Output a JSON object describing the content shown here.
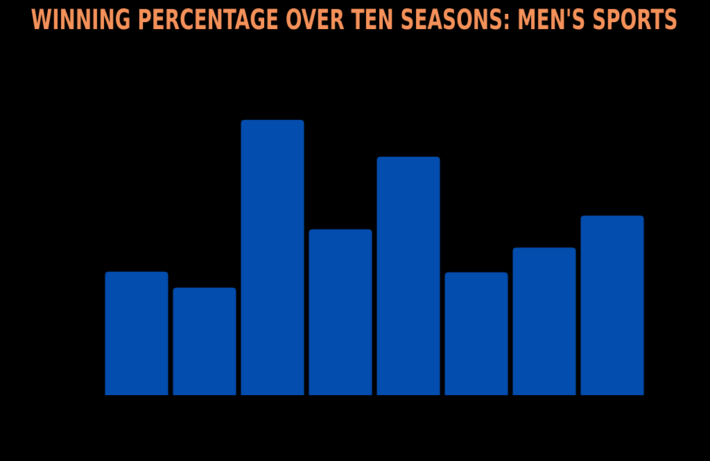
{
  "chart_data": {
    "type": "bar",
    "title": "WINNING PERCENTAGE OVER TEN SEASONS: MEN'S SPORTS",
    "categories": [
      null,
      null,
      null,
      null,
      null,
      null,
      null,
      null
    ],
    "values": [
      37.9,
      33.0,
      84.5,
      50.9,
      73.2,
      37.7,
      45.3,
      55.1
    ],
    "color": "#034dae",
    "ylim": [
      0,
      100
    ],
    "grid": false
  }
}
